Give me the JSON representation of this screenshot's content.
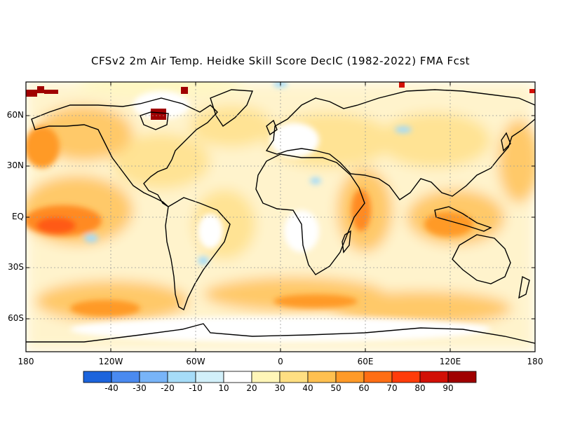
{
  "title": "CFSv2 2m Air Temp. Heidke Skill Score DecIC (1982-2022) FMA Fcst",
  "lat_labels": [
    "60N",
    "30N",
    "EQ",
    "30S",
    "60S"
  ],
  "lon_labels": [
    "180",
    "120W",
    "60W",
    "0",
    "60E",
    "120E",
    "180"
  ],
  "colorbar": {
    "labels": [
      "-40",
      "-30",
      "-20",
      "-10",
      "10",
      "20",
      "30",
      "40",
      "50",
      "60",
      "70",
      "80",
      "90"
    ],
    "colors": [
      "#1c64dc",
      "#4a8af0",
      "#78b4f8",
      "#a6dcf8",
      "#ffffff",
      "#fff6b8",
      "#ffdf82",
      "#ffc050",
      "#ff9a28",
      "#ff6e14",
      "#ff3c0a",
      "#d20f05",
      "#a00000"
    ]
  },
  "map_colors": {
    "land_outline": "#000000",
    "grid": "#9a9a9a",
    "low_skill": "#ffe8a0",
    "mid_skill": "#ffc050",
    "high_skill": "#ff8a20",
    "negative_skill": "#a6dcf8",
    "extreme_skill": "#a00000"
  }
}
